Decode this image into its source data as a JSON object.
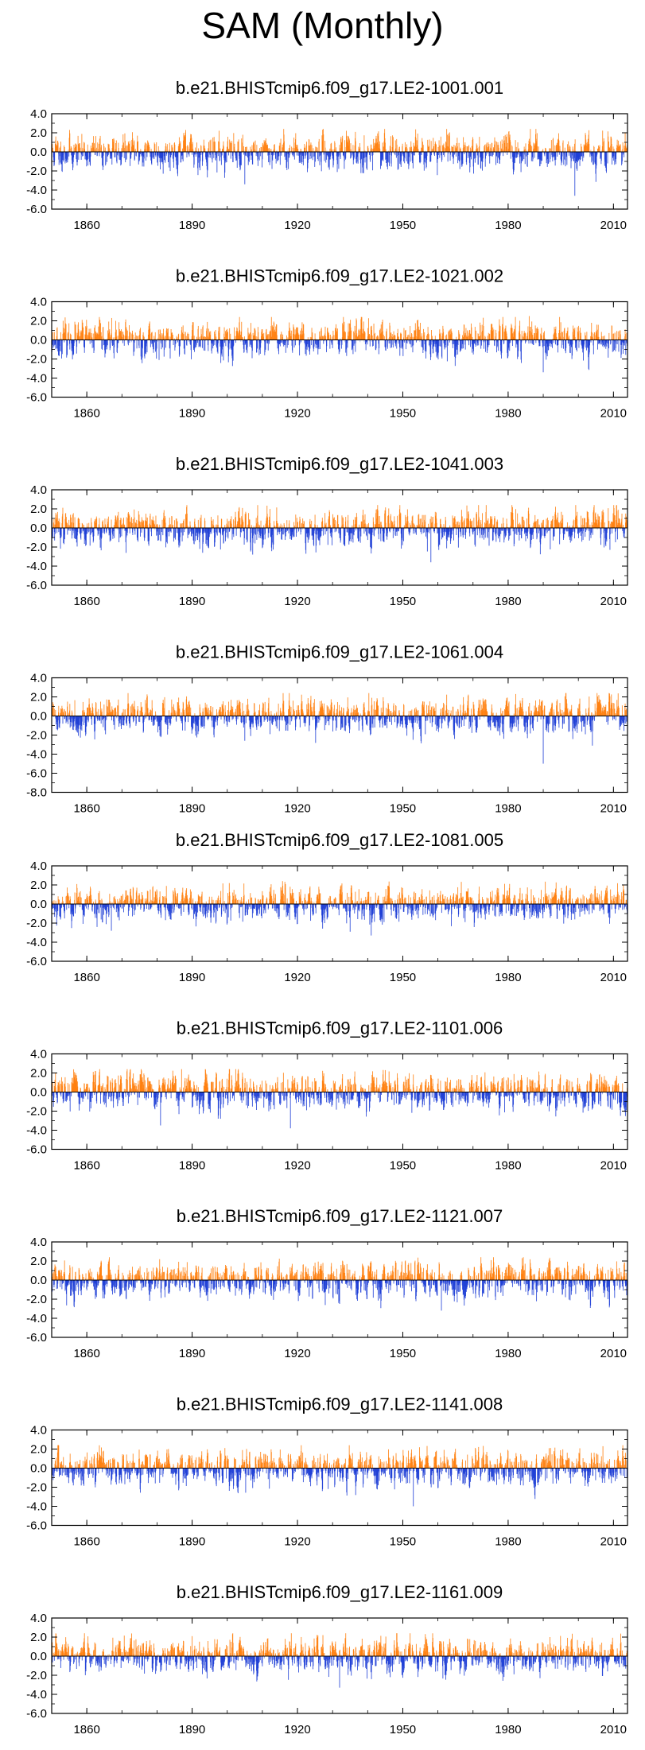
{
  "title": "SAM (Monthly)",
  "chart_data": [
    {
      "type": "bar",
      "title": "b.e21.BHISTcmip6.f09_g17.LE2-1001.001",
      "x_range": [
        1850,
        2014
      ],
      "ylim": [
        -6,
        4
      ],
      "yticks": [
        "4.0",
        "2.0",
        "0.0",
        "-2.0",
        "-4.0",
        "-6.0"
      ],
      "xticks": [
        "1860",
        "1890",
        "1920",
        "1950",
        "1980",
        "2010"
      ],
      "seed": 11,
      "positive_color": "#ff7f0e",
      "negative_color": "#1f3fd6",
      "spikes": [
        [
          1905,
          -3.4
        ],
        [
          1999,
          -4.6
        ],
        [
          2008,
          -2.2
        ]
      ]
    },
    {
      "type": "bar",
      "title": "b.e21.BHISTcmip6.f09_g17.LE2-1021.002",
      "x_range": [
        1850,
        2014
      ],
      "ylim": [
        -6,
        4
      ],
      "yticks": [
        "4.0",
        "2.0",
        "0.0",
        "-2.0",
        "-4.0",
        "-6.0"
      ],
      "xticks": [
        "1860",
        "1890",
        "1920",
        "1950",
        "1980",
        "2010"
      ],
      "seed": 23,
      "positive_color": "#ff7f0e",
      "negative_color": "#1f3fd6",
      "spikes": [
        [
          1986,
          2.5
        ],
        [
          1990,
          -3.4
        ]
      ]
    },
    {
      "type": "bar",
      "title": "b.e21.BHISTcmip6.f09_g17.LE2-1041.003",
      "x_range": [
        1850,
        2014
      ],
      "ylim": [
        -6,
        4
      ],
      "yticks": [
        "4.0",
        "2.0",
        "0.0",
        "-2.0",
        "-4.0",
        "-6.0"
      ],
      "xticks": [
        "1860",
        "1890",
        "1920",
        "1950",
        "1980",
        "2010"
      ],
      "seed": 37,
      "positive_color": "#ff7f0e",
      "negative_color": "#1f3fd6",
      "spikes": [
        [
          1958,
          -3.6
        ],
        [
          1893,
          -2.6
        ]
      ]
    },
    {
      "type": "bar",
      "title": "b.e21.BHISTcmip6.f09_g17.LE2-1061.004",
      "x_range": [
        1850,
        2014
      ],
      "ylim": [
        -8,
        4
      ],
      "yticks": [
        "4.0",
        "2.0",
        "0.0",
        "-2.0",
        "-4.0",
        "-6.0",
        "-8.0"
      ],
      "xticks": [
        "1860",
        "1890",
        "1920",
        "1950",
        "1980",
        "2010"
      ],
      "seed": 41,
      "positive_color": "#ff7f0e",
      "negative_color": "#1f3fd6",
      "spikes": [
        [
          1990,
          -5.0
        ],
        [
          1905,
          -2.6
        ]
      ]
    },
    {
      "type": "bar",
      "title": "b.e21.BHISTcmip6.f09_g17.LE2-1081.005",
      "x_range": [
        1850,
        2014
      ],
      "ylim": [
        -6,
        4
      ],
      "yticks": [
        "4.0",
        "2.0",
        "0.0",
        "-2.0",
        "-4.0",
        "-6.0"
      ],
      "xticks": [
        "1860",
        "1890",
        "1920",
        "1950",
        "1980",
        "2010"
      ],
      "seed": 53,
      "positive_color": "#ff7f0e",
      "negative_color": "#1f3fd6",
      "spikes": [
        [
          1941,
          -3.3
        ],
        [
          1867,
          -2.8
        ]
      ]
    },
    {
      "type": "bar",
      "title": "b.e21.BHISTcmip6.f09_g17.LE2-1101.006",
      "x_range": [
        1850,
        2014
      ],
      "ylim": [
        -6,
        4
      ],
      "yticks": [
        "4.0",
        "2.0",
        "0.0",
        "-2.0",
        "-4.0",
        "-6.0"
      ],
      "xticks": [
        "1860",
        "1890",
        "1920",
        "1950",
        "1980",
        "2010"
      ],
      "seed": 67,
      "positive_color": "#ff7f0e",
      "negative_color": "#1f3fd6",
      "spikes": [
        [
          1918,
          -3.8
        ],
        [
          1881,
          -3.5
        ],
        [
          1945,
          2.3
        ]
      ]
    },
    {
      "type": "bar",
      "title": "b.e21.BHISTcmip6.f09_g17.LE2-1121.007",
      "x_range": [
        1850,
        2014
      ],
      "ylim": [
        -6,
        4
      ],
      "yticks": [
        "4.0",
        "2.0",
        "0.0",
        "-2.0",
        "-4.0",
        "-6.0"
      ],
      "xticks": [
        "1860",
        "1890",
        "1920",
        "1950",
        "1980",
        "2010"
      ],
      "seed": 79,
      "positive_color": "#ff7f0e",
      "negative_color": "#1f3fd6",
      "spikes": [
        [
          1932,
          -2.5
        ],
        [
          1961,
          -3.2
        ],
        [
          1984,
          2.3
        ]
      ]
    },
    {
      "type": "bar",
      "title": "b.e21.BHISTcmip6.f09_g17.LE2-1141.008",
      "x_range": [
        1850,
        2014
      ],
      "ylim": [
        -6,
        4
      ],
      "yticks": [
        "4.0",
        "2.0",
        "0.0",
        "-2.0",
        "-4.0",
        "-6.0"
      ],
      "xticks": [
        "1860",
        "1890",
        "1920",
        "1950",
        "1980",
        "2010"
      ],
      "seed": 83,
      "positive_color": "#ff7f0e",
      "negative_color": "#1f3fd6",
      "spikes": [
        [
          1953,
          -4.0
        ],
        [
          2007,
          2.3
        ]
      ]
    },
    {
      "type": "bar",
      "title": "b.e21.BHISTcmip6.f09_g17.LE2-1161.009",
      "x_range": [
        1850,
        2014
      ],
      "ylim": [
        -6,
        4
      ],
      "yticks": [
        "4.0",
        "2.0",
        "0.0",
        "-2.0",
        "-4.0",
        "-6.0"
      ],
      "xticks": [
        "1860",
        "1890",
        "1920",
        "1950",
        "1980",
        "2010"
      ],
      "seed": 97,
      "positive_color": "#ff7f0e",
      "negative_color": "#1f3fd6",
      "spikes": [
        [
          1932,
          -3.3
        ],
        [
          1890,
          2.1
        ]
      ]
    }
  ]
}
